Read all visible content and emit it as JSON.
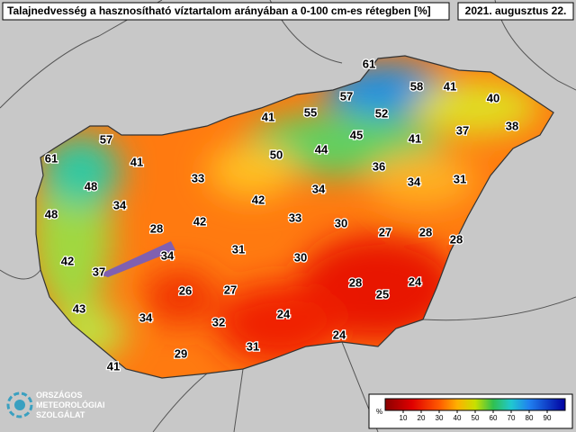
{
  "header": {
    "title": "Talajnedvesség a hasznosítható víztartalom arányában a 0-100 cm-es rétegben [%]",
    "date": "2021. augusztus 22."
  },
  "stations": [
    61,
    58,
    41,
    40,
    57,
    55,
    52,
    41,
    37,
    38,
    57,
    45,
    41,
    50,
    44,
    61,
    41,
    36,
    33,
    34,
    31,
    48,
    34,
    42,
    34,
    48,
    33,
    42,
    28,
    30,
    27,
    28,
    28,
    42,
    34,
    31,
    30,
    37,
    28,
    24,
    26,
    27,
    25,
    43,
    34,
    32,
    24,
    24,
    31,
    29,
    41
  ],
  "colorbar": {
    "unit": "%",
    "lim": [
      0,
      100
    ],
    "ticks": [
      10,
      20,
      30,
      40,
      50,
      60,
      70,
      80,
      90
    ]
  },
  "logo": {
    "lines": [
      "ORSZÁGOS",
      "METEOROLÓGIAI",
      "SZOLGÁLAT"
    ]
  }
}
